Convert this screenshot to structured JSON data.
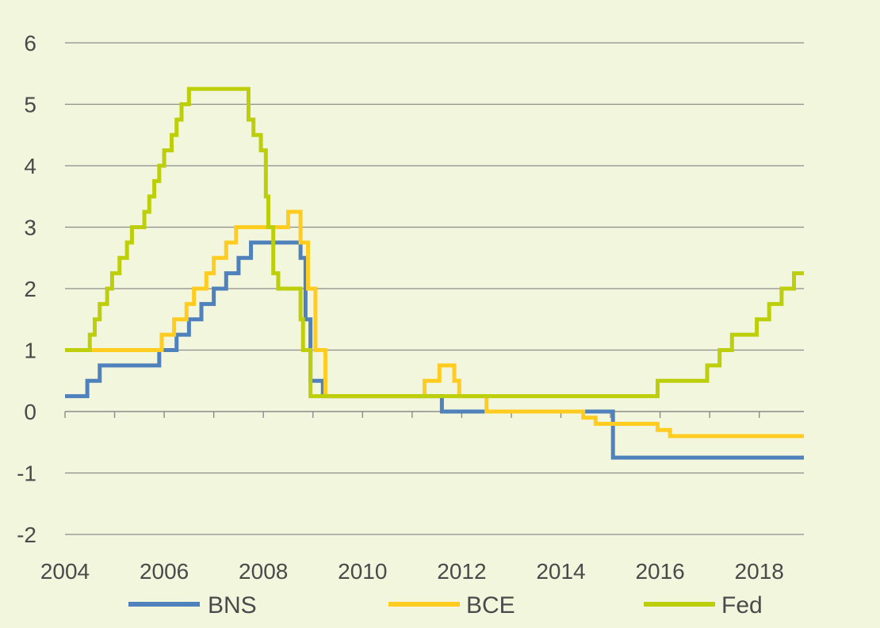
{
  "chart_data": {
    "type": "line",
    "step": true,
    "title": "",
    "xlabel": "",
    "ylabel": "",
    "xlim": [
      2004,
      2018.9
    ],
    "ylim": [
      -2,
      6
    ],
    "x_ticks": [
      2004,
      2006,
      2008,
      2010,
      2012,
      2014,
      2016,
      2018
    ],
    "x_tick_labels": [
      "2004",
      "2006",
      "2008",
      "2010",
      "2012",
      "2014",
      "2016",
      "2018"
    ],
    "y_ticks": [
      -2,
      -1,
      0,
      1,
      2,
      3,
      4,
      5,
      6
    ],
    "y_tick_labels": [
      "-2",
      "-1",
      "0",
      "1",
      "2",
      "3",
      "4",
      "5",
      "6"
    ],
    "grid": "horizontal",
    "legend_position": "bottom",
    "series": [
      {
        "name": "BNS",
        "color": "#4f81bd",
        "points": [
          [
            2004.0,
            0.25
          ],
          [
            2004.45,
            0.5
          ],
          [
            2004.7,
            0.75
          ],
          [
            2005.9,
            1.0
          ],
          [
            2006.25,
            1.25
          ],
          [
            2006.5,
            1.5
          ],
          [
            2006.75,
            1.75
          ],
          [
            2007.0,
            2.0
          ],
          [
            2007.25,
            2.25
          ],
          [
            2007.5,
            2.5
          ],
          [
            2007.75,
            2.75
          ],
          [
            2008.75,
            2.5
          ],
          [
            2008.85,
            1.5
          ],
          [
            2008.95,
            0.5
          ],
          [
            2009.2,
            0.25
          ],
          [
            2011.6,
            0.0
          ],
          [
            2015.05,
            -0.75
          ],
          [
            2018.9,
            -0.75
          ]
        ]
      },
      {
        "name": "BCE",
        "color": "#ffcc1f",
        "points": [
          [
            2004.0,
            1.0
          ],
          [
            2005.95,
            1.25
          ],
          [
            2006.2,
            1.5
          ],
          [
            2006.45,
            1.75
          ],
          [
            2006.6,
            2.0
          ],
          [
            2006.85,
            2.25
          ],
          [
            2007.0,
            2.5
          ],
          [
            2007.25,
            2.75
          ],
          [
            2007.45,
            3.0
          ],
          [
            2008.5,
            3.25
          ],
          [
            2008.75,
            2.75
          ],
          [
            2008.9,
            2.0
          ],
          [
            2009.05,
            1.0
          ],
          [
            2009.25,
            0.25
          ],
          [
            2011.25,
            0.5
          ],
          [
            2011.55,
            0.75
          ],
          [
            2011.85,
            0.5
          ],
          [
            2011.95,
            0.25
          ],
          [
            2012.5,
            0.0
          ],
          [
            2014.45,
            -0.1
          ],
          [
            2014.7,
            -0.2
          ],
          [
            2015.95,
            -0.3
          ],
          [
            2016.2,
            -0.4
          ],
          [
            2018.9,
            -0.4
          ]
        ]
      },
      {
        "name": "Fed",
        "color": "#bccf0a",
        "points": [
          [
            2004.0,
            1.0
          ],
          [
            2004.5,
            1.25
          ],
          [
            2004.6,
            1.5
          ],
          [
            2004.7,
            1.75
          ],
          [
            2004.85,
            2.0
          ],
          [
            2004.95,
            2.25
          ],
          [
            2005.1,
            2.5
          ],
          [
            2005.25,
            2.75
          ],
          [
            2005.35,
            3.0
          ],
          [
            2005.6,
            3.25
          ],
          [
            2005.7,
            3.5
          ],
          [
            2005.8,
            3.75
          ],
          [
            2005.9,
            4.0
          ],
          [
            2006.0,
            4.25
          ],
          [
            2006.15,
            4.5
          ],
          [
            2006.25,
            4.75
          ],
          [
            2006.35,
            5.0
          ],
          [
            2006.5,
            5.25
          ],
          [
            2007.7,
            4.75
          ],
          [
            2007.8,
            4.5
          ],
          [
            2007.95,
            4.25
          ],
          [
            2008.05,
            3.5
          ],
          [
            2008.1,
            3.0
          ],
          [
            2008.2,
            2.25
          ],
          [
            2008.3,
            2.0
          ],
          [
            2008.75,
            1.5
          ],
          [
            2008.8,
            1.0
          ],
          [
            2008.95,
            0.25
          ],
          [
            2015.95,
            0.5
          ],
          [
            2016.95,
            0.75
          ],
          [
            2017.2,
            1.0
          ],
          [
            2017.45,
            1.25
          ],
          [
            2017.95,
            1.5
          ],
          [
            2018.2,
            1.75
          ],
          [
            2018.45,
            2.0
          ],
          [
            2018.7,
            2.25
          ],
          [
            2018.9,
            2.25
          ]
        ]
      }
    ]
  }
}
